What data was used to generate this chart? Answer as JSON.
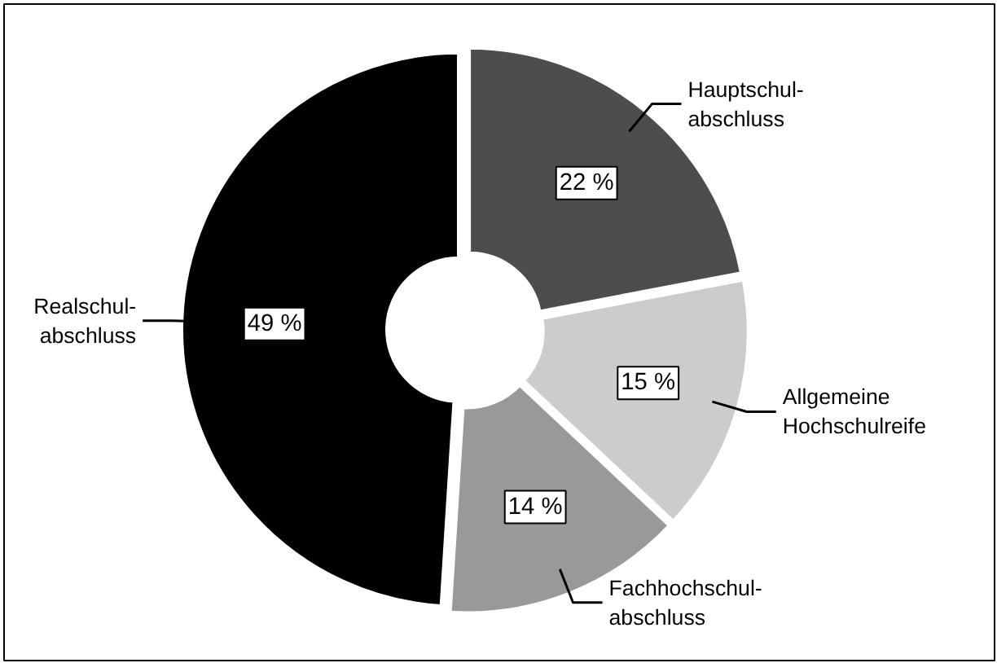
{
  "chart_data": {
    "type": "donut",
    "categories": [
      "Hauptschul-\nabschluss",
      "Allgemeine\nHochschulreife",
      "Fachhochschul-\nabschluss",
      "Realschul-\nabschluss"
    ],
    "values": [
      22,
      15,
      14,
      49
    ],
    "colors": [
      "#4d4d4d",
      "#cccccc",
      "#999999",
      "#000000"
    ],
    "value_labels": [
      "22 %",
      "15 %",
      "14 %",
      "49 %"
    ]
  }
}
